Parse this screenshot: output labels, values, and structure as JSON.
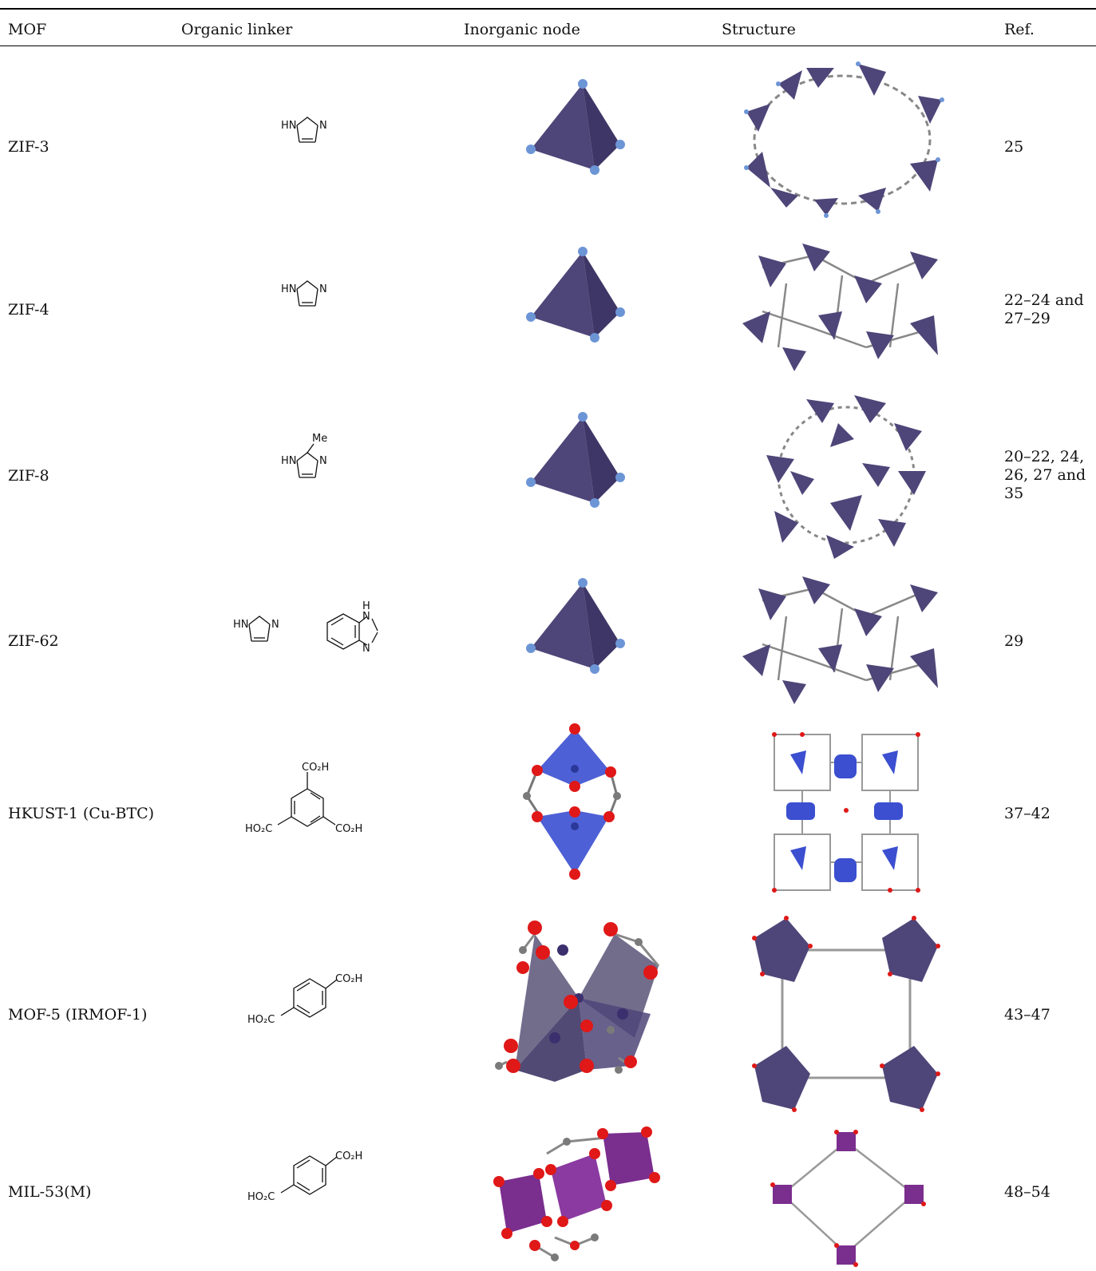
{
  "headers": {
    "mof": "MOF",
    "linker": "Organic linker",
    "node": "Inorganic node",
    "structure": "Structure",
    "ref": "Ref."
  },
  "rows": [
    {
      "mof": "ZIF-3",
      "ref": [
        "25"
      ],
      "linker_labels": [
        "HN",
        "N"
      ]
    },
    {
      "mof": "ZIF-4",
      "ref": [
        "22–24 and",
        "27–29"
      ],
      "linker_labels": [
        "HN",
        "N"
      ]
    },
    {
      "mof": "ZIF-8",
      "ref": [
        "20–22, 24,",
        "26, 27 and",
        "35"
      ],
      "linker_labels": [
        "HN",
        "N",
        "Me"
      ]
    },
    {
      "mof": "ZIF-62",
      "ref": [
        "29"
      ],
      "linker_labels": [
        "HN",
        "N",
        "H",
        "N",
        "N"
      ]
    },
    {
      "mof": "HKUST-1 (Cu-BTC)",
      "ref": [
        "37–42"
      ],
      "linker_labels": [
        "CO₂H",
        "HO₂C",
        "CO₂H"
      ]
    },
    {
      "mof": "MOF-5 (IRMOF-1)",
      "ref": [
        "43–47"
      ],
      "linker_labels": [
        "CO₂H",
        "HO₂C"
      ]
    },
    {
      "mof": "MIL-53(M)",
      "ref": [
        "48–54"
      ],
      "linker_labels": [
        "CO₂H",
        "HO₂C"
      ]
    }
  ],
  "colors": {
    "tetra": "#4e4578",
    "tetra_light": "#6a5f9a",
    "n_atom": "#6c95d6",
    "c_atom": "#7a7a7a",
    "o_atom": "#e01818",
    "cu_poly": "#3b4fd0",
    "mil_poly": "#7a2e8e"
  }
}
